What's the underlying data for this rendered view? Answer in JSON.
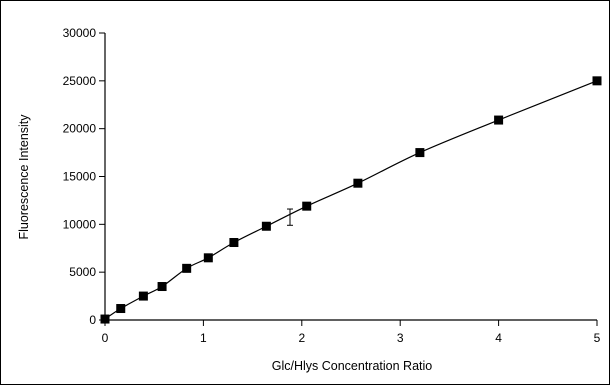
{
  "chart_data": {
    "type": "scatter",
    "title": "",
    "xlabel": "Glc/Hlys Concentration Ratio",
    "ylabel": "Fluorescence Intensity",
    "xlim": [
      0,
      5
    ],
    "ylim": [
      0,
      30000
    ],
    "x_ticks": [
      0,
      1,
      2,
      3,
      4,
      5
    ],
    "y_ticks": [
      0,
      5000,
      10000,
      15000,
      20000,
      25000,
      30000
    ],
    "x_tick_labels": [
      "0",
      "1",
      "2",
      "3",
      "4",
      "5"
    ],
    "y_tick_labels": [
      "0",
      "5000",
      "10000",
      "15000",
      "20000",
      "25000",
      "30000"
    ],
    "grid": false,
    "legend": "none",
    "series": [
      {
        "values": [
          {
            "x": 0.0,
            "y": 100
          },
          {
            "x": 0.16,
            "y": 1200
          },
          {
            "x": 0.39,
            "y": 2500
          },
          {
            "x": 0.58,
            "y": 3500
          },
          {
            "x": 0.83,
            "y": 5400
          },
          {
            "x": 1.05,
            "y": 6500
          },
          {
            "x": 1.31,
            "y": 8100
          },
          {
            "x": 1.64,
            "y": 9800
          },
          {
            "x": 2.05,
            "y": 11900
          },
          {
            "x": 2.57,
            "y": 14300
          },
          {
            "x": 3.2,
            "y": 17500
          },
          {
            "x": 4.0,
            "y": 20900
          },
          {
            "x": 5.0,
            "y": 25000
          }
        ]
      }
    ],
    "trendline": {
      "type": "smooth",
      "color": "#000000"
    },
    "error_bar": {
      "x": 1.88,
      "y_low": 9900,
      "y_high": 11600
    },
    "marker": {
      "shape": "square",
      "color": "#000000"
    },
    "colors": {
      "axis": "#000000",
      "frame": "#000000",
      "background": "#ffffff"
    }
  }
}
